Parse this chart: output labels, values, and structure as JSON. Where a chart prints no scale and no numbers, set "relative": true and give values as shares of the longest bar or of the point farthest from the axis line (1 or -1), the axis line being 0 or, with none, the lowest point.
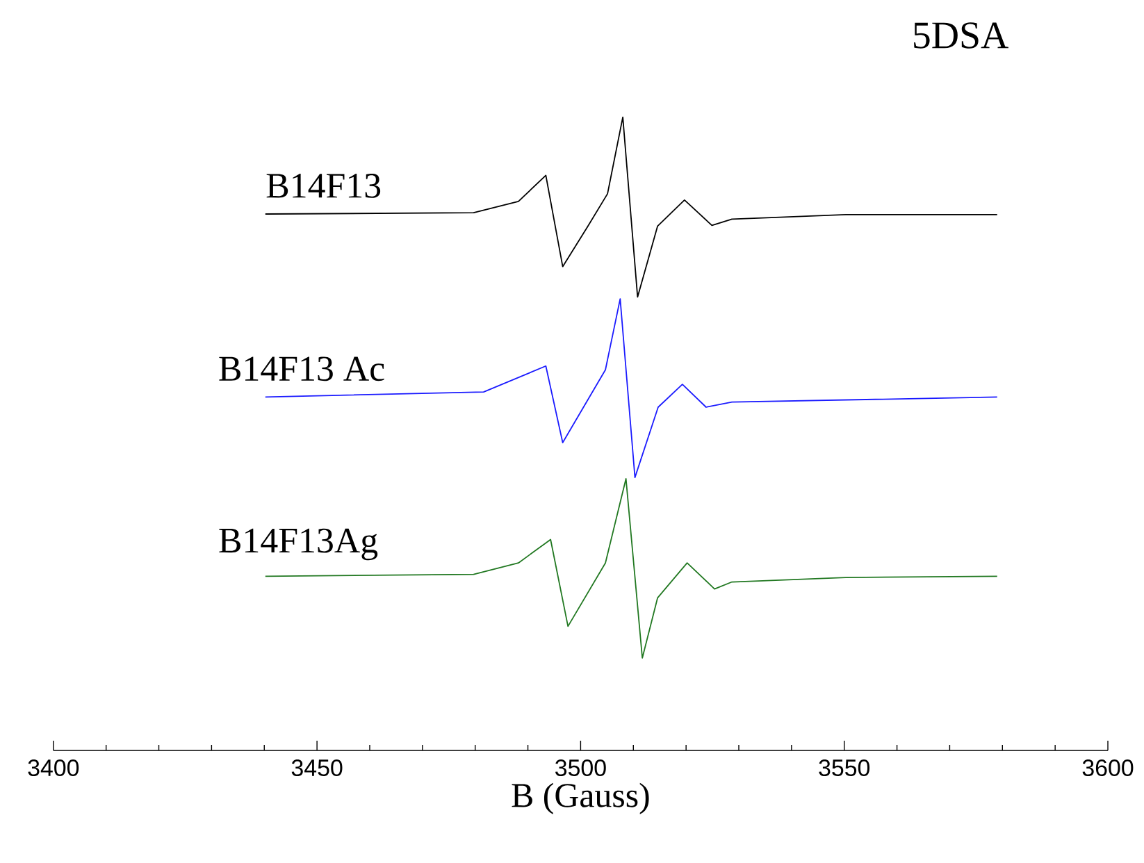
{
  "chart_data": {
    "type": "line",
    "title": "5DSA",
    "xlabel": "B (Gauss)",
    "relative": true,
    "xlim": [
      3400,
      3600
    ],
    "xticks": [
      3400,
      3450,
      3500,
      3550,
      3600
    ],
    "series": [
      {
        "name": "B14F13",
        "color": "#000000",
        "x": [
          3440.2,
          3479.7,
          3488.2,
          3493.4,
          3496.6,
          3501.4,
          3505.1,
          3508.0,
          3510.8,
          3514.6,
          3519.7,
          3524.9,
          3528.7,
          3550.3,
          3579.0
        ],
        "values": [
          0.847,
          0.849,
          0.867,
          0.908,
          0.764,
          0.828,
          0.879,
          1.0,
          0.716,
          0.828,
          0.869,
          0.829,
          0.839,
          0.846,
          0.846
        ]
      },
      {
        "name": "B14F13 Ac",
        "color": "#1a1aff",
        "x": [
          3440.2,
          3481.6,
          3493.4,
          3496.6,
          3504.7,
          3507.5,
          3510.3,
          3514.7,
          3519.3,
          3523.8,
          3528.7,
          3579.0
        ],
        "values": [
          0.558,
          0.566,
          0.607,
          0.486,
          0.601,
          0.713,
          0.431,
          0.542,
          0.578,
          0.542,
          0.55,
          0.558
        ]
      },
      {
        "name": "B14F13Ag",
        "color": "#217821",
        "x": [
          3440.2,
          3479.7,
          3488.2,
          3494.3,
          3497.6,
          3504.7,
          3508.6,
          3511.7,
          3514.6,
          3520.2,
          3525.4,
          3528.7,
          3550.3,
          3579.0
        ],
        "values": [
          0.275,
          0.278,
          0.296,
          0.333,
          0.196,
          0.296,
          0.429,
          0.146,
          0.241,
          0.296,
          0.255,
          0.266,
          0.273,
          0.275
        ]
      }
    ]
  }
}
